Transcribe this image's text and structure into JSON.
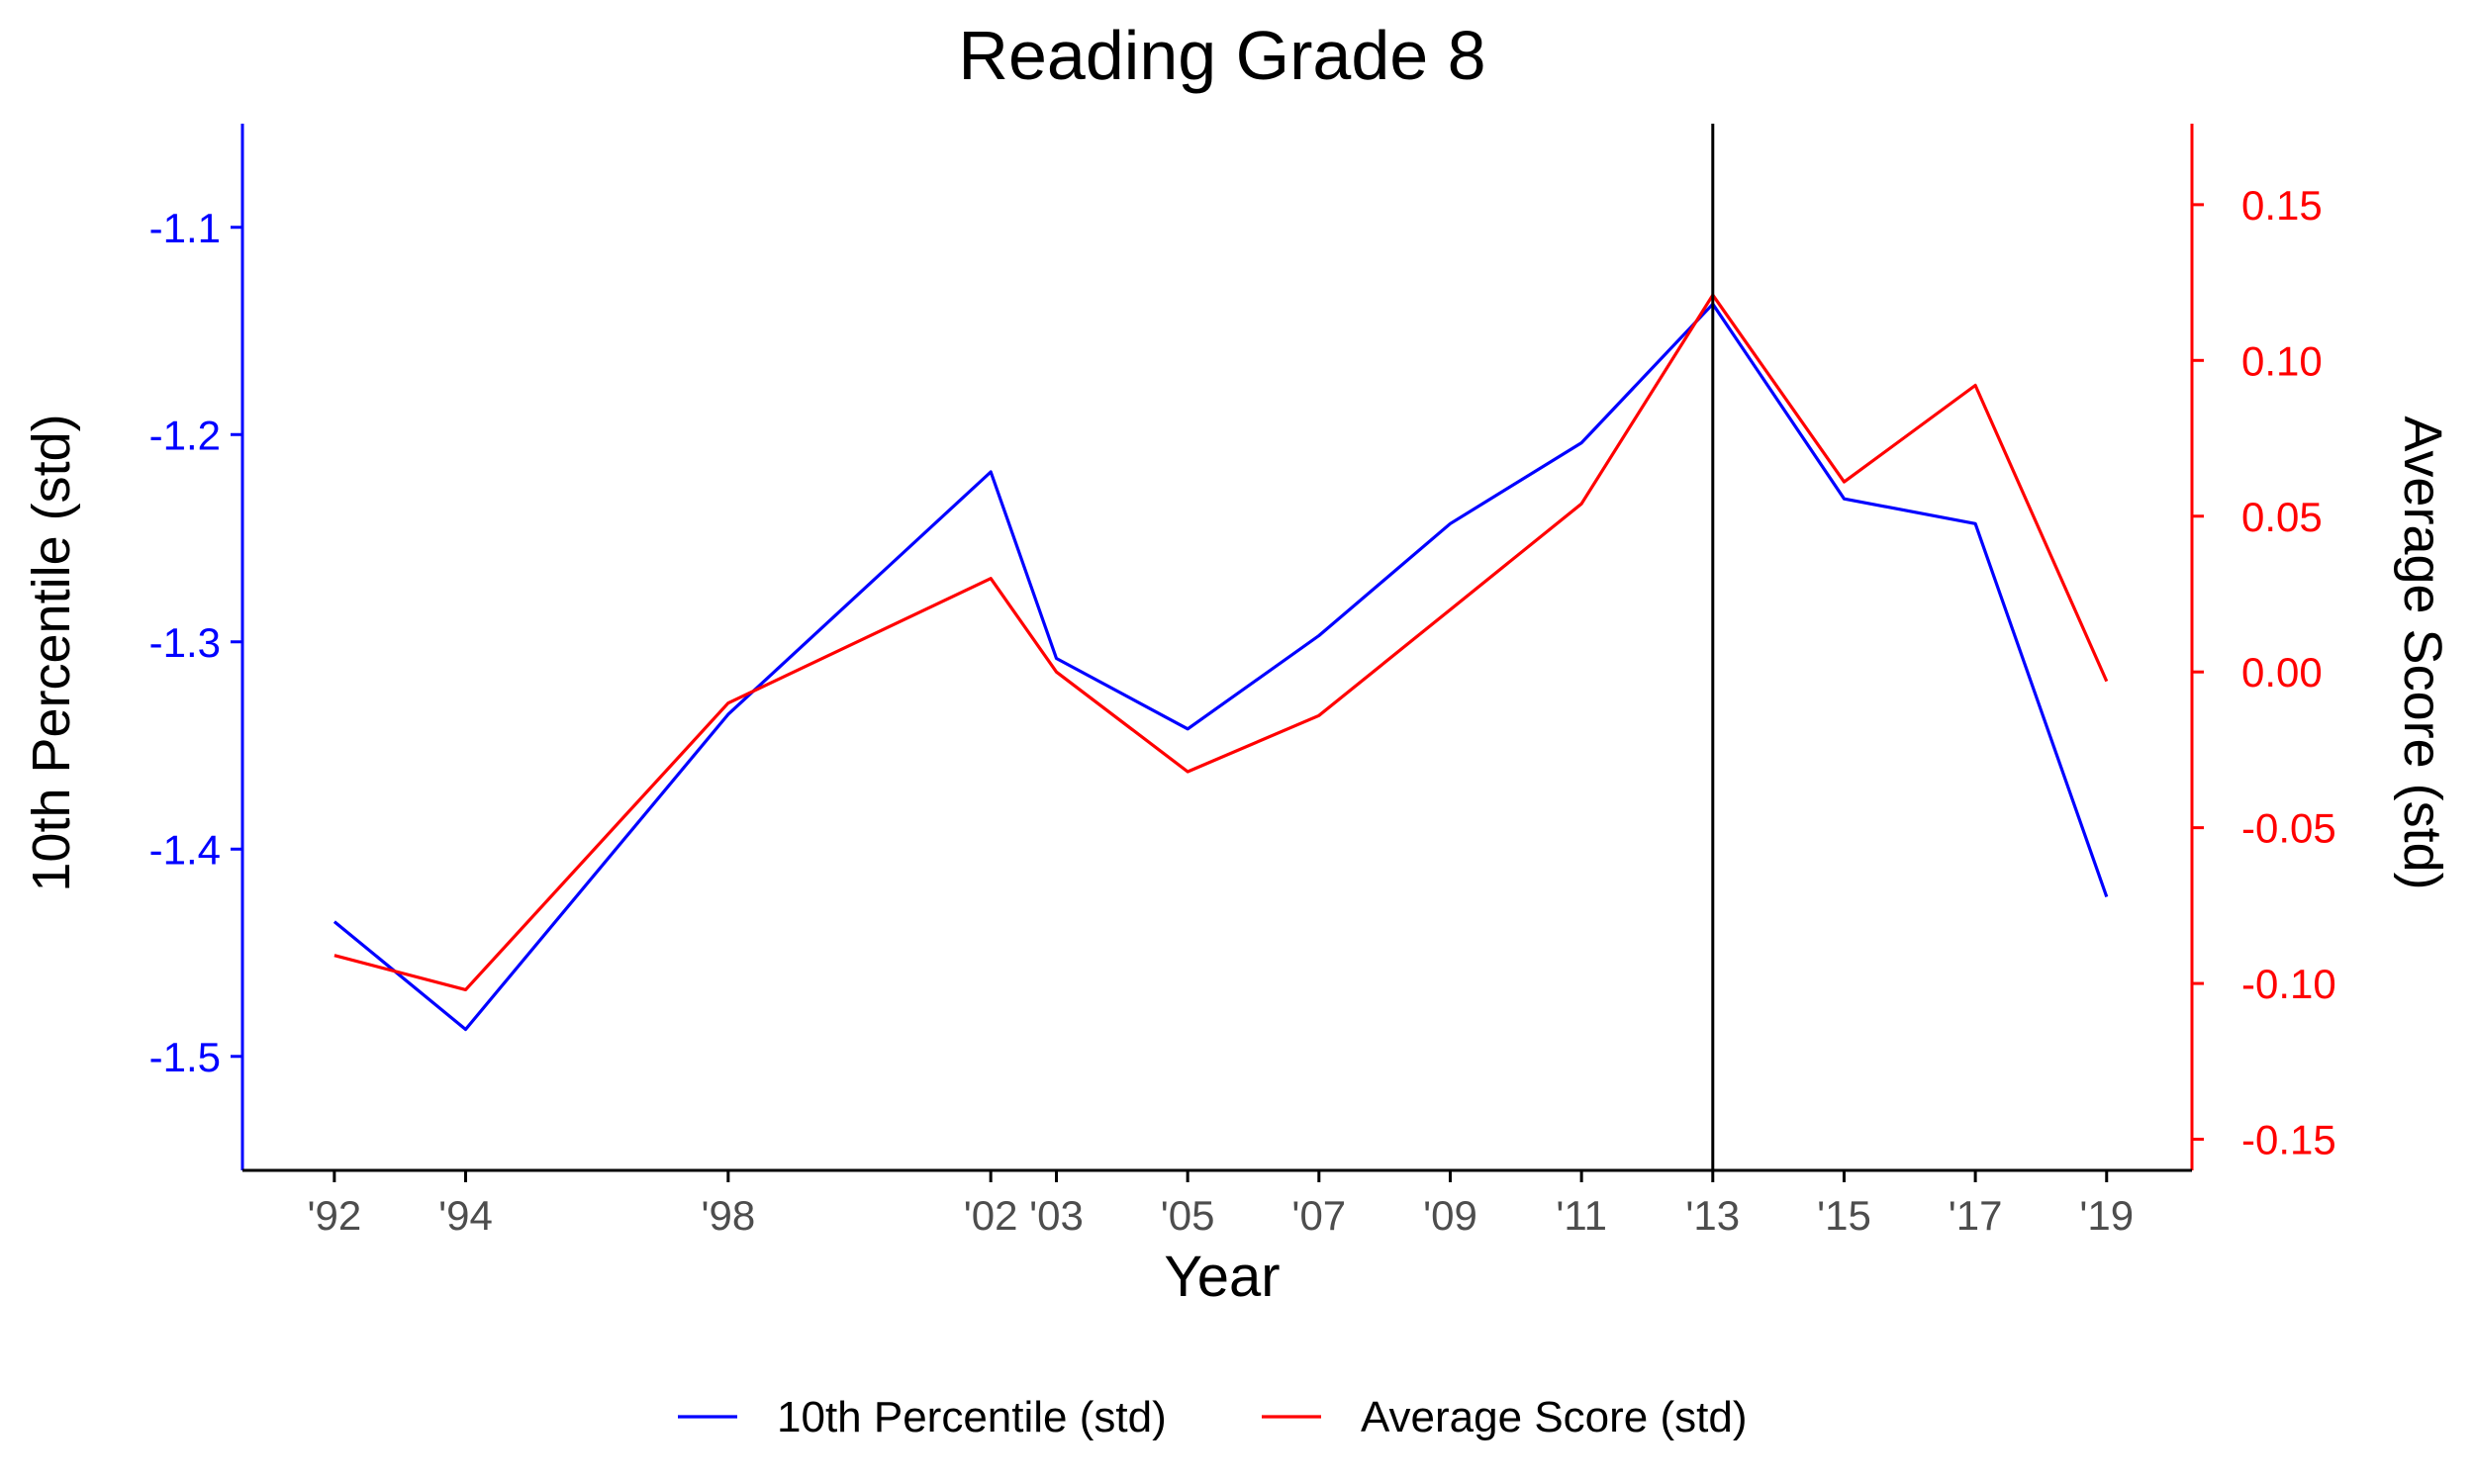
{
  "chart_data": {
    "type": "line",
    "title": "Reading Grade 8",
    "xlabel": "Year",
    "ylabel_left": "10th Percentile (std)",
    "ylabel_right": "Average Score (std)",
    "x": [
      1992,
      1994,
      1998,
      2002,
      2003,
      2005,
      2007,
      2009,
      2011,
      2013,
      2015,
      2017,
      2019
    ],
    "x_tick_labels": [
      "'92",
      "'94",
      "'98",
      "'02",
      "'03",
      "'05",
      "'07",
      "'09",
      "'11",
      "'13",
      "'15",
      "'17",
      "'19"
    ],
    "xlim": [
      1990.6,
      2020.3
    ],
    "y_left": {
      "ylim": [
        -1.555,
        -1.05
      ],
      "ticks": [
        -1.5,
        -1.4,
        -1.3,
        -1.2,
        -1.1
      ],
      "tick_labels": [
        "-1.5",
        "-1.4",
        "-1.3",
        "-1.2",
        "-1.1"
      ]
    },
    "y_right": {
      "ylim": [
        -0.16,
        0.176
      ],
      "ticks": [
        -0.15,
        -0.1,
        -0.05,
        0.0,
        0.05,
        0.1,
        0.15
      ],
      "tick_labels": [
        "-0.15",
        "-0.10",
        "-0.05",
        "0.00",
        "0.05",
        "0.10",
        "0.15"
      ]
    },
    "series": [
      {
        "name": "10th Percentile (std)",
        "axis": "left",
        "color": "#0000ff",
        "values": [
          -1.435,
          -1.487,
          -1.335,
          -1.218,
          -1.308,
          -1.342,
          -1.297,
          -1.243,
          -1.204,
          -1.137,
          -1.231,
          -1.243,
          -1.423
        ]
      },
      {
        "name": "Average Score (std)",
        "axis": "right",
        "color": "#ff0000",
        "values": [
          -0.091,
          -0.102,
          -0.01,
          0.03,
          0.0,
          -0.032,
          -0.014,
          0.02,
          0.054,
          0.121,
          0.061,
          0.092,
          -0.003
        ]
      }
    ],
    "vline": {
      "x": 2013,
      "color": "#000000"
    },
    "grid": false,
    "legend": {
      "position": "bottom"
    },
    "colors": {
      "left_axis": "#0000ff",
      "right_axis": "#ff0000",
      "x_axis": "#000000"
    }
  }
}
